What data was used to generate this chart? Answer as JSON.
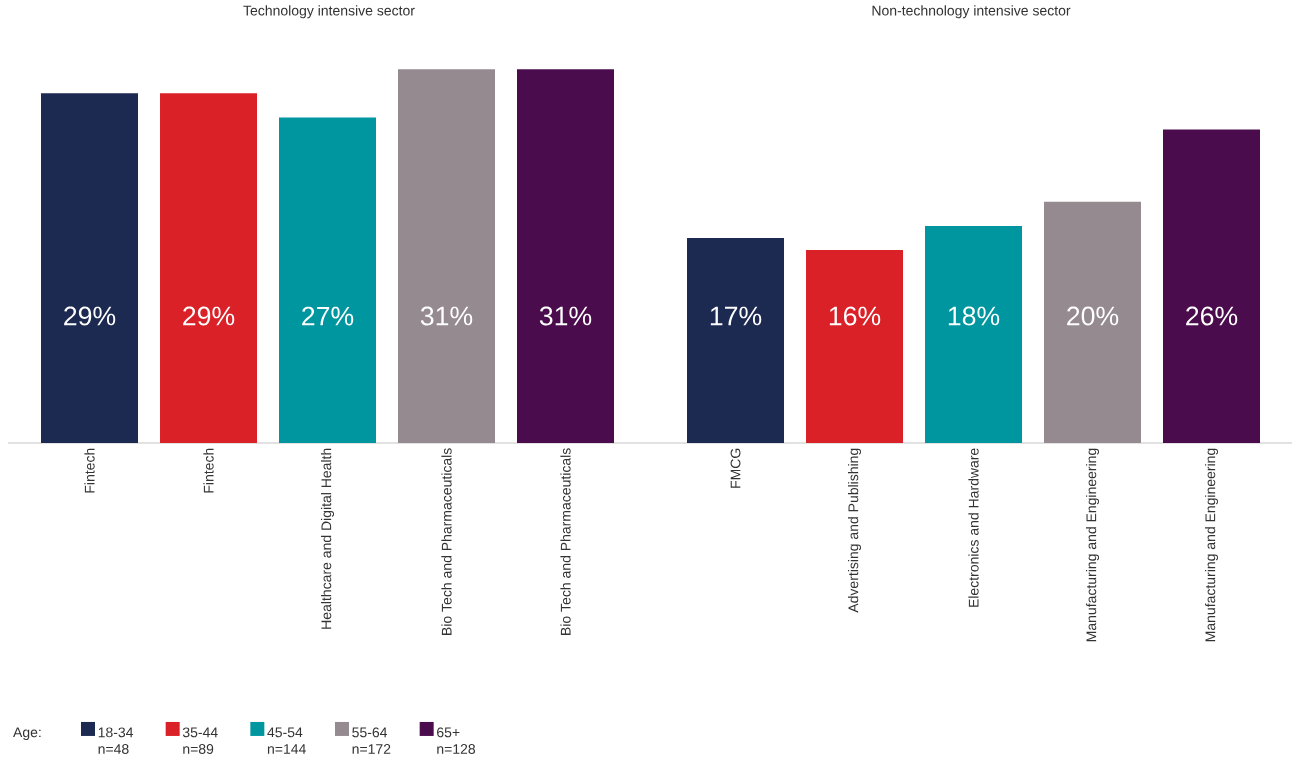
{
  "chart_data": [
    {
      "type": "bar",
      "title": "Technology intensive sector",
      "categories": [
        "Fintech",
        "Fintech",
        "Healthcare and Digital Health",
        "Bio Tech and Pharmaceuticals",
        "Bio Tech and Pharmaceuticals"
      ],
      "legend_title": "Age:",
      "legend": "bottom left",
      "tick_labels": "x",
      "series": [
        {
          "name": "18-34 n=48",
          "color": "#1c2951",
          "values": [
            29,
            null,
            null,
            null,
            null
          ],
          "value_labels": [
            "29%",
            null,
            null,
            null,
            null
          ]
        },
        {
          "name": "35-44 n=89",
          "color": "#da2128",
          "values": [
            null,
            29,
            null,
            null,
            null
          ],
          "value_labels": [
            null,
            "29%",
            null,
            null,
            null
          ]
        },
        {
          "name": "45-54 n=144",
          "color": "#0096a0",
          "values": [
            null,
            null,
            27,
            null,
            null
          ],
          "value_labels": [
            null,
            null,
            "27%",
            null,
            null
          ]
        },
        {
          "name": "55-64 n=172",
          "color": "#958a90",
          "values": [
            null,
            null,
            null,
            31,
            null
          ],
          "value_labels": [
            null,
            null,
            null,
            "31%",
            null
          ]
        },
        {
          "name": "65+ n=128",
          "color": "#4b0c4d",
          "values": [
            null,
            null,
            null,
            null,
            31
          ],
          "value_labels": [
            null,
            null,
            null,
            null,
            "31%"
          ]
        }
      ]
    },
    {
      "type": "bar",
      "title": "Non-technology intensive sector",
      "categories": [
        "FMCG",
        "Advertising and Publishing",
        "Electronics and Hardware",
        "Manufacturing and Engineering",
        "Manufacturing and Engineering"
      ],
      "tick_labels": "x",
      "series": [
        {
          "color": "#1c2951",
          "values": [
            17,
            null,
            null,
            null,
            null
          ],
          "value_labels": [
            "17%",
            null,
            null,
            null,
            null
          ]
        },
        {
          "color": "#da2128",
          "values": [
            null,
            16,
            null,
            null,
            null
          ],
          "value_labels": [
            null,
            "16%",
            null,
            null,
            null
          ]
        },
        {
          "color": "#0096a0",
          "values": [
            null,
            null,
            18,
            null,
            null
          ],
          "value_labels": [
            null,
            null,
            "18%",
            null,
            null
          ]
        },
        {
          "color": "#958a90",
          "values": [
            null,
            null,
            null,
            20,
            null
          ],
          "value_labels": [
            null,
            null,
            null,
            "20%",
            null
          ]
        },
        {
          "color": "#4b0c4d",
          "values": [
            null,
            null,
            null,
            null,
            26
          ],
          "value_labels": [
            null,
            null,
            null,
            null,
            "26%"
          ]
        }
      ]
    }
  ]
}
